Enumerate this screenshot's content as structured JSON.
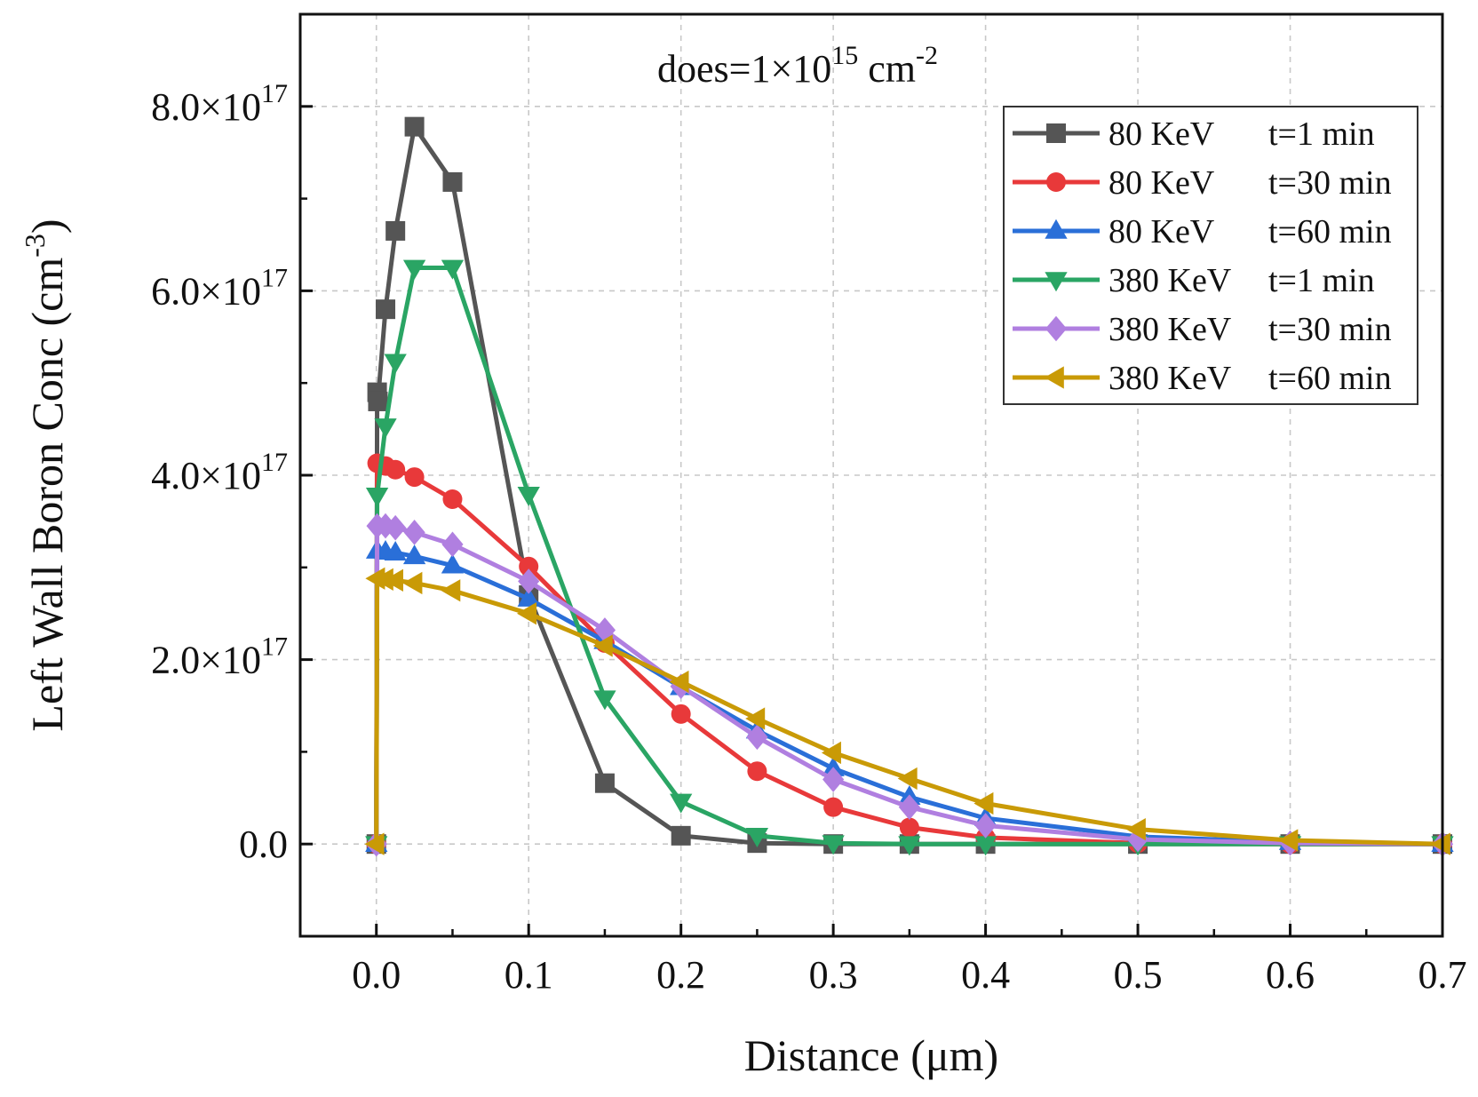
{
  "chart_data": {
    "type": "line",
    "title": "",
    "annotation": {
      "text_prefix": "does=1×10",
      "text_exp": "15",
      "text_unit": " cm",
      "text_unit_exp": "-2"
    },
    "xlabel": "Distance (μm)",
    "ylabel": {
      "text": "Left Wall Boron Conc (cm",
      "exp": "-3",
      "suffix": ")"
    },
    "xlim": [
      -0.05,
      0.7
    ],
    "ylim": [
      -1e+17,
      9e+17
    ],
    "xticks": [
      {
        "value": 0.0,
        "label": "0.0"
      },
      {
        "value": 0.1,
        "label": "0.1"
      },
      {
        "value": 0.2,
        "label": "0.2"
      },
      {
        "value": 0.3,
        "label": "0.3"
      },
      {
        "value": 0.4,
        "label": "0.4"
      },
      {
        "value": 0.5,
        "label": "0.5"
      },
      {
        "value": 0.6,
        "label": "0.6"
      },
      {
        "value": 0.7,
        "label": "0.7"
      }
    ],
    "yticks": [
      {
        "value": 0,
        "label": "0.0",
        "exp": ""
      },
      {
        "value": 2e+17,
        "label": "2.0×10",
        "exp": "17"
      },
      {
        "value": 4e+17,
        "label": "4.0×10",
        "exp": "17"
      },
      {
        "value": 6e+17,
        "label": "6.0×10",
        "exp": "17"
      },
      {
        "value": 8e+17,
        "label": "8.0×10",
        "exp": "17"
      }
    ],
    "grid": true,
    "legend_position": "top-right",
    "series": [
      {
        "name": "80 KeV",
        "time": "t=1 min",
        "color": "#555555",
        "marker": "square",
        "x": [
          0,
          0.0005,
          0.001,
          0.006,
          0.0125,
          0.025,
          0.05,
          0.1,
          0.15,
          0.2,
          0.25,
          0.3,
          0.35,
          0.4,
          0.5,
          0.6,
          0.7
        ],
        "y": [
          0,
          4.9e+17,
          4.8e+17,
          5.8e+17,
          6.65e+17,
          7.78e+17,
          7.18e+17,
          2.7e+17,
          6.6e+16,
          9000000000000000.0,
          1000000000000000.0,
          0,
          0,
          0,
          0,
          0,
          0
        ]
      },
      {
        "name": "80 KeV",
        "time": "t=30 min",
        "color": "#e8393a",
        "marker": "circle",
        "x": [
          0,
          0.0005,
          0.006,
          0.0125,
          0.025,
          0.05,
          0.1,
          0.15,
          0.2,
          0.25,
          0.3,
          0.35,
          0.4,
          0.5,
          0.6,
          0.7
        ],
        "y": [
          0,
          4.13e+17,
          4.1e+17,
          4.06e+17,
          3.98e+17,
          3.74e+17,
          3.01e+17,
          2.18e+17,
          1.41e+17,
          7.9e+16,
          4e+16,
          1.8e+16,
          7000000000000000.0,
          1000000000000000.0,
          0,
          0
        ]
      },
      {
        "name": "80 KeV",
        "time": "t=60 min",
        "color": "#2a6fd8",
        "marker": "triangle-up",
        "x": [
          0,
          0.0005,
          0.006,
          0.0125,
          0.025,
          0.05,
          0.1,
          0.15,
          0.2,
          0.25,
          0.3,
          0.35,
          0.4,
          0.5,
          0.6,
          0.7
        ],
        "y": [
          0,
          3.18e+17,
          3.17e+17,
          3.16e+17,
          3.12e+17,
          3.02e+17,
          2.66e+17,
          2.2e+17,
          1.7e+17,
          1.23e+17,
          8.2e+16,
          5.1e+16,
          2.8e+16,
          8000000000000000.0,
          2000000000000000.0,
          0
        ]
      },
      {
        "name": "380 KeV",
        "time": "t=1 min",
        "color": "#2aa564",
        "marker": "triangle-down",
        "x": [
          0,
          0.0005,
          0.006,
          0.0125,
          0.025,
          0.05,
          0.1,
          0.15,
          0.2,
          0.25,
          0.3,
          0.35,
          0.4,
          0.5,
          0.6,
          0.7
        ],
        "y": [
          0,
          3.78e+17,
          4.53e+17,
          5.23e+17,
          6.25e+17,
          6.25e+17,
          3.79e+17,
          1.58e+17,
          4.6e+16,
          9000000000000000.0,
          1000000000000000.0,
          0,
          0,
          0,
          0,
          0
        ]
      },
      {
        "name": "380 KeV",
        "time": "t=30 min",
        "color": "#b07fe0",
        "marker": "diamond",
        "x": [
          0,
          0.0005,
          0.006,
          0.0125,
          0.025,
          0.05,
          0.1,
          0.15,
          0.2,
          0.25,
          0.3,
          0.35,
          0.4,
          0.5,
          0.6,
          0.7
        ],
        "y": [
          0,
          3.45e+17,
          3.45e+17,
          3.43e+17,
          3.38e+17,
          3.25e+17,
          2.85e+17,
          2.32e+17,
          1.71e+17,
          1.16e+17,
          7e+16,
          4e+16,
          2e+16,
          5000000000000000.0,
          1000000000000000.0,
          0
        ]
      },
      {
        "name": "380 KeV",
        "time": "t=60 min",
        "color": "#c99a06",
        "marker": "triangle-left",
        "x": [
          0,
          0.0005,
          0.006,
          0.0125,
          0.025,
          0.05,
          0.1,
          0.15,
          0.2,
          0.25,
          0.3,
          0.35,
          0.4,
          0.5,
          0.6,
          0.7
        ],
        "y": [
          0,
          2.88e+17,
          2.87e+17,
          2.86e+17,
          2.83e+17,
          2.75e+17,
          2.5e+17,
          2.15e+17,
          1.76e+17,
          1.36e+17,
          9.9e+16,
          7.1e+16,
          4.4e+16,
          1.6e+16,
          4000000000000000.0,
          0
        ]
      }
    ]
  }
}
